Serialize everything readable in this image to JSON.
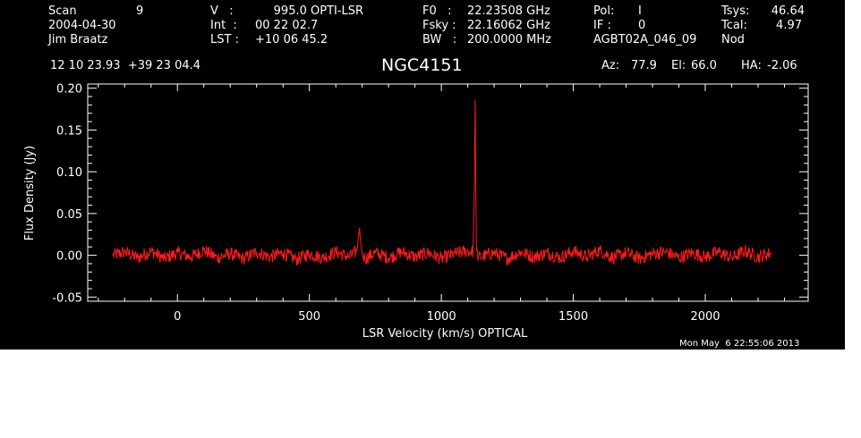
{
  "header": {
    "scan_label": "Scan",
    "scan_number": "9",
    "date": "2004-04-30",
    "observer": "Jim Braatz",
    "v_label": "V   :",
    "v_value": "     995.0 OPTI-LSR",
    "int_label": "Int  :",
    "int_value": "00 22 02.7",
    "lst_label": "LST :",
    "lst_value": "+10 06 45.2",
    "f0_label": "F0   :",
    "f0_value": "22.23508 GHz",
    "fsky_label": "Fsky :",
    "fsky_value": "22.16062 GHz",
    "bw_label": "BW   :",
    "bw_value": "200.0000 MHz",
    "pol_label": "Pol:",
    "pol_value": "I",
    "if_label": "IF :",
    "if_value": "0",
    "project": "AGBT02A_046_09",
    "tsys_label": "Tsys:",
    "tsys_value": "46.64",
    "tcal_label": "Tcal:",
    "tcal_value": "4.97",
    "mode": "Nod",
    "coords": "12 10 23.93  +39 23 04.4",
    "source": "NGC4151",
    "az_label": "Az:",
    "az_value": "77.9",
    "el_label": "El:",
    "el_value": "66.0",
    "ha_label": "HA:",
    "ha_value": "-2.06"
  },
  "footer": {
    "timestamp": "Mon May  6 22:55:06 2013"
  },
  "colors": {
    "background": "#000000",
    "axes": "#ffffff",
    "spectrum": "#ff1a1a"
  },
  "chart_data": {
    "type": "line",
    "title": "NGC4151",
    "xlabel": "LSR Velocity (km/s) OPTICAL",
    "ylabel": "Flux Density (Jy)",
    "xlim": [
      -340,
      2390
    ],
    "ylim": [
      -0.055,
      0.205
    ],
    "xticks": [
      0,
      500,
      1000,
      1500,
      2000
    ],
    "xtick_labels": [
      "0",
      "500",
      "1000",
      "1500",
      "2000"
    ],
    "yticks": [
      -0.05,
      0.0,
      0.05,
      0.1,
      0.15,
      0.2
    ],
    "ytick_labels": [
      "-0.05",
      "0.00",
      "0.05",
      "0.10",
      "0.15",
      "0.20"
    ],
    "grid": false,
    "series": [
      {
        "x": [
          -245,
          -200,
          -150,
          -100,
          -50,
          0,
          50,
          100,
          150,
          200,
          250,
          300,
          350,
          400,
          450,
          500,
          550,
          600,
          650,
          680,
          690,
          695,
          700,
          710,
          750,
          800,
          850,
          900,
          950,
          1000,
          1050,
          1100,
          1120,
          1125,
          1128,
          1130,
          1133,
          1140,
          1200,
          1250,
          1300,
          1350,
          1400,
          1450,
          1500,
          1550,
          1600,
          1650,
          1700,
          1750,
          1800,
          1850,
          1900,
          1950,
          2000,
          2050,
          2100,
          2150,
          2200,
          2250
        ],
        "y": [
          0.0,
          0.004,
          -0.003,
          0.005,
          -0.004,
          0.003,
          -0.002,
          0.006,
          -0.003,
          0.002,
          -0.004,
          0.004,
          -0.002,
          0.003,
          -0.005,
          0.002,
          -0.003,
          0.004,
          -0.002,
          0.005,
          0.033,
          0.012,
          0.002,
          -0.004,
          0.003,
          -0.003,
          0.004,
          -0.002,
          0.003,
          -0.004,
          0.002,
          0.005,
          0.004,
          0.08,
          0.186,
          0.09,
          0.006,
          -0.003,
          0.003,
          -0.004,
          0.004,
          -0.002,
          0.003,
          -0.003,
          0.005,
          -0.002,
          0.006,
          -0.003,
          0.003,
          -0.004,
          0.002,
          0.004,
          -0.003,
          0.003,
          -0.002,
          0.004,
          -0.003,
          0.005,
          -0.002,
          0.003
        ]
      }
    ]
  }
}
